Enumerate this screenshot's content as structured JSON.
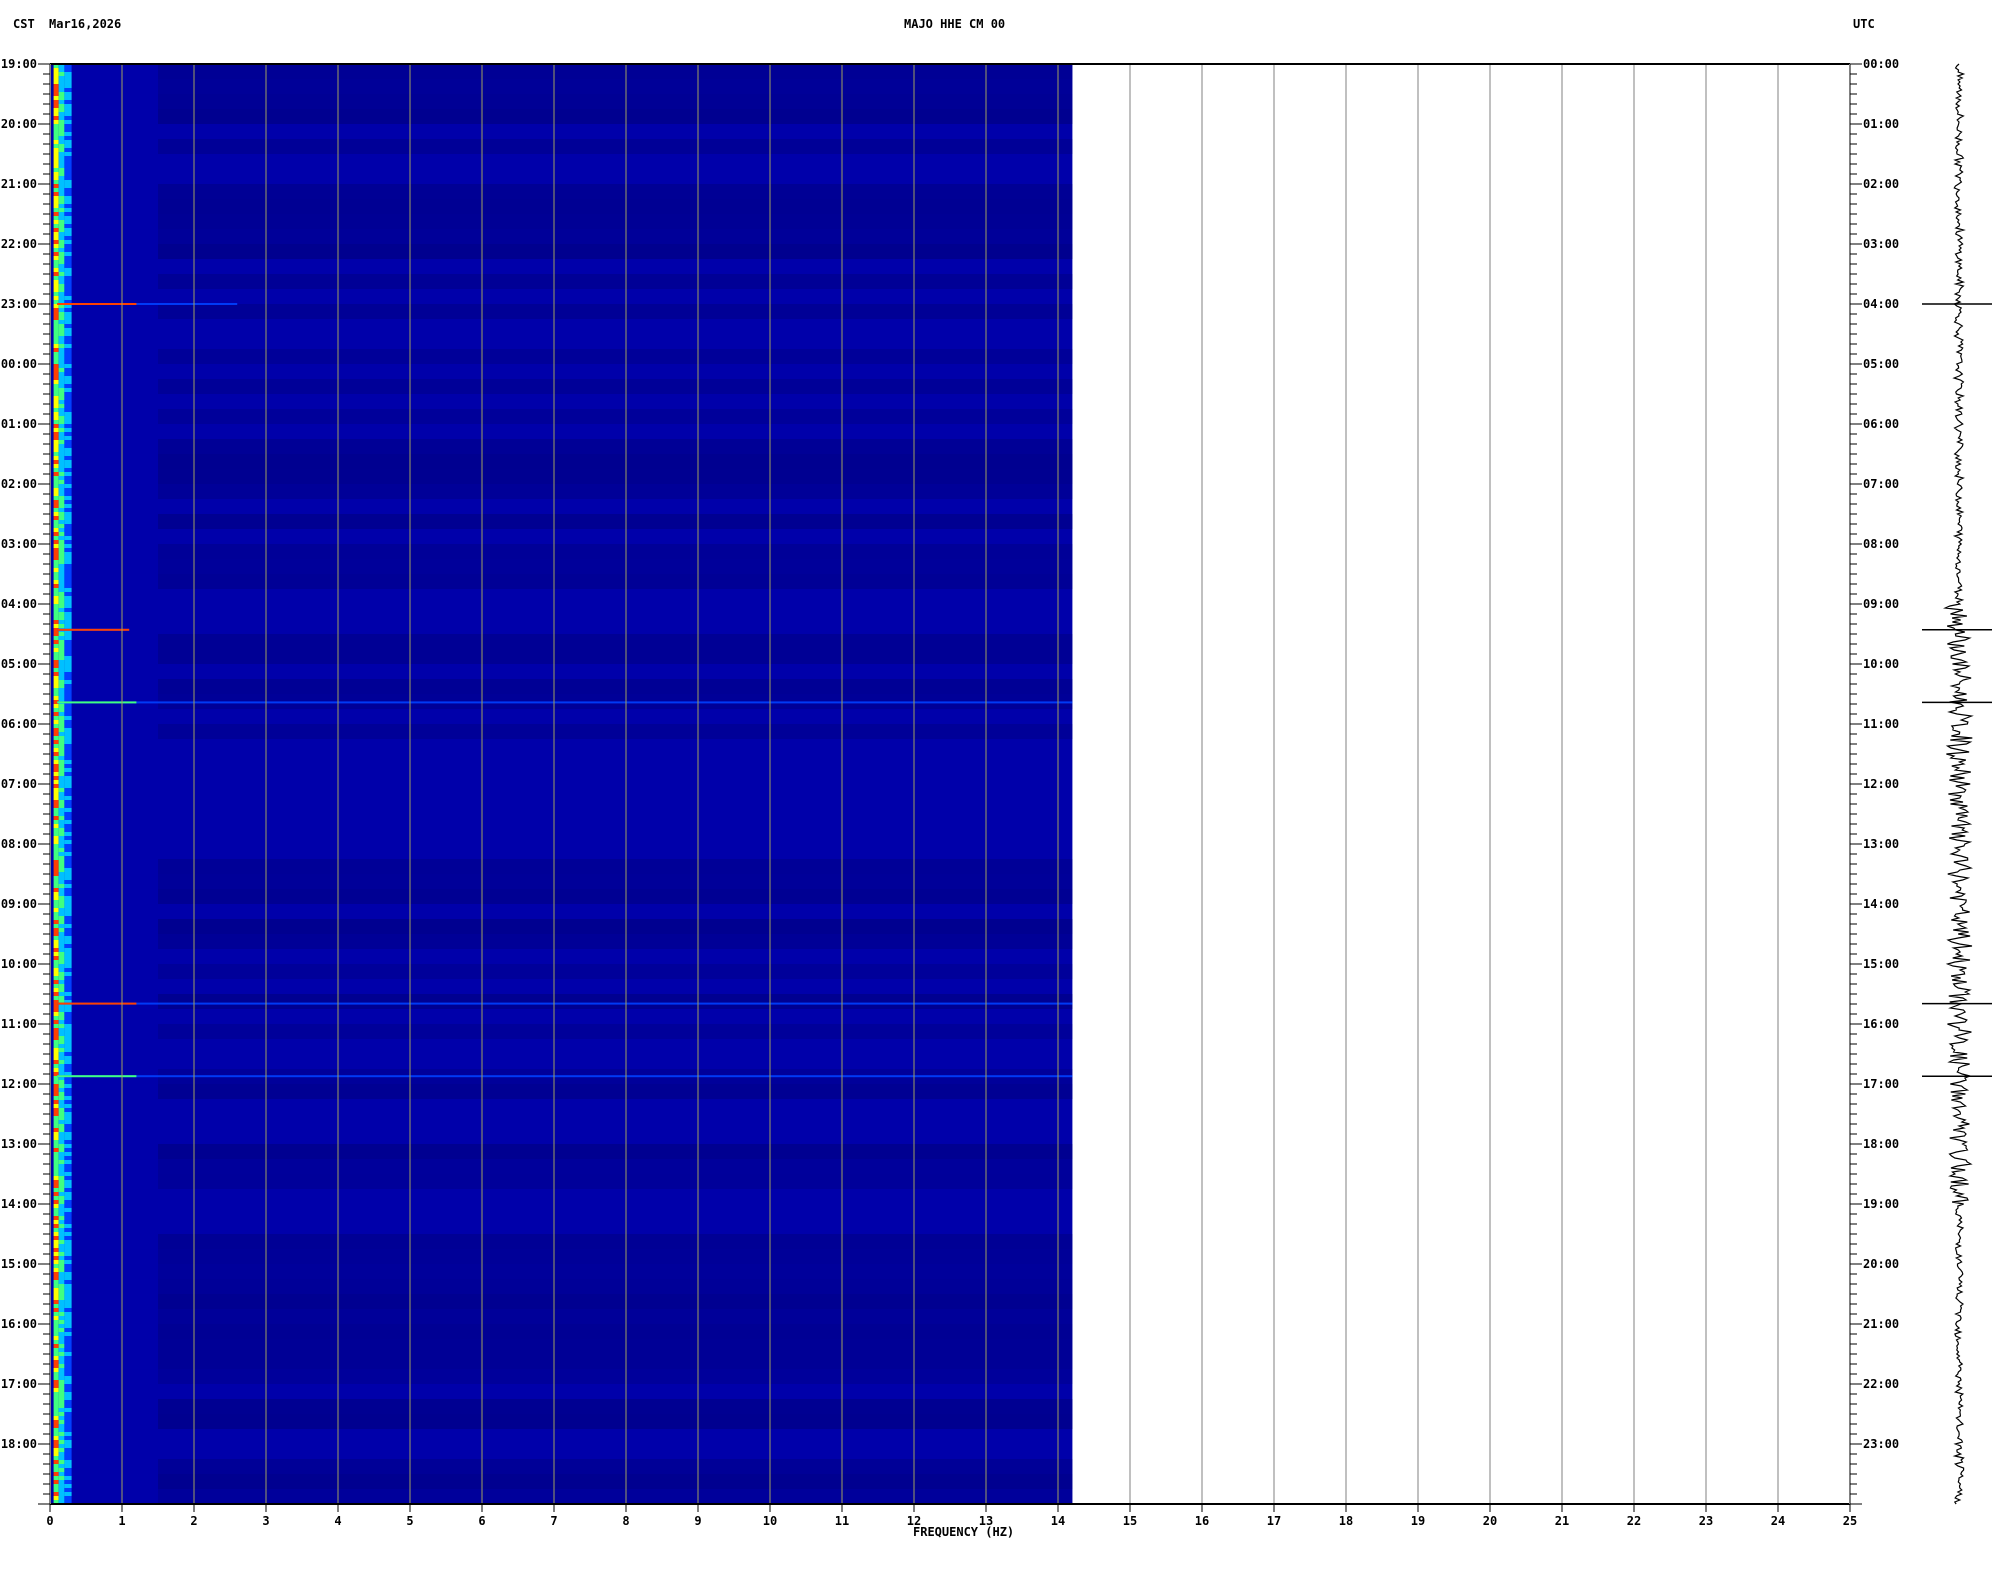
{
  "header": {
    "left_timezone": "CST",
    "date": "Mar16,2026",
    "title": "MAJO HHE CM 00",
    "right_timezone": "UTC"
  },
  "chart_data": {
    "type": "heatmap",
    "title": "MAJO HHE CM 00",
    "xlabel": "FREQUENCY (HZ)",
    "xlim": [
      0,
      25
    ],
    "x_ticks": [
      "0",
      "1",
      "2",
      "3",
      "4",
      "5",
      "6",
      "7",
      "8",
      "9",
      "10",
      "11",
      "12",
      "13",
      "14",
      "15",
      "16",
      "17",
      "18",
      "19",
      "20",
      "21",
      "22",
      "23",
      "24",
      "25"
    ],
    "spectrogram_max_frequency_hz": 14.2,
    "y_left_label": "CST",
    "y_left_ticks": [
      "19:00",
      "20:00",
      "21:00",
      "22:00",
      "23:00",
      "00:00",
      "01:00",
      "02:00",
      "03:00",
      "04:00",
      "05:00",
      "06:00",
      "07:00",
      "08:00",
      "09:00",
      "10:00",
      "11:00",
      "12:00",
      "13:00",
      "14:00",
      "15:00",
      "16:00",
      "17:00",
      "18:00"
    ],
    "y_right_label": "UTC",
    "y_right_ticks": [
      "00:00",
      "01:00",
      "02:00",
      "03:00",
      "04:00",
      "05:00",
      "06:00",
      "07:00",
      "08:00",
      "09:00",
      "10:00",
      "11:00",
      "12:00",
      "13:00",
      "14:00",
      "15:00",
      "16:00",
      "17:00",
      "18:00",
      "19:00",
      "20:00",
      "21:00",
      "22:00",
      "23:00"
    ],
    "hours_span": 24,
    "grid": true,
    "colormap": [
      "#00008c",
      "#0000aa",
      "#0040ff",
      "#00c0ff",
      "#40ff80",
      "#ffff00",
      "#ff4000",
      "#c00000"
    ],
    "background_color": "#0000aa",
    "events": [
      {
        "hours_from_start": 4.0,
        "max_freq_hz": 2.6,
        "strength": 1.0
      },
      {
        "hours_from_start": 9.43,
        "max_freq_hz": 1.1,
        "strength": 0.9
      },
      {
        "hours_from_start": 10.64,
        "max_freq_hz": 14.2,
        "strength": 0.6
      },
      {
        "hours_from_start": 15.66,
        "max_freq_hz": 14.2,
        "strength": 1.0
      },
      {
        "hours_from_start": 16.87,
        "max_freq_hz": 14.2,
        "strength": 0.5
      }
    ]
  }
}
